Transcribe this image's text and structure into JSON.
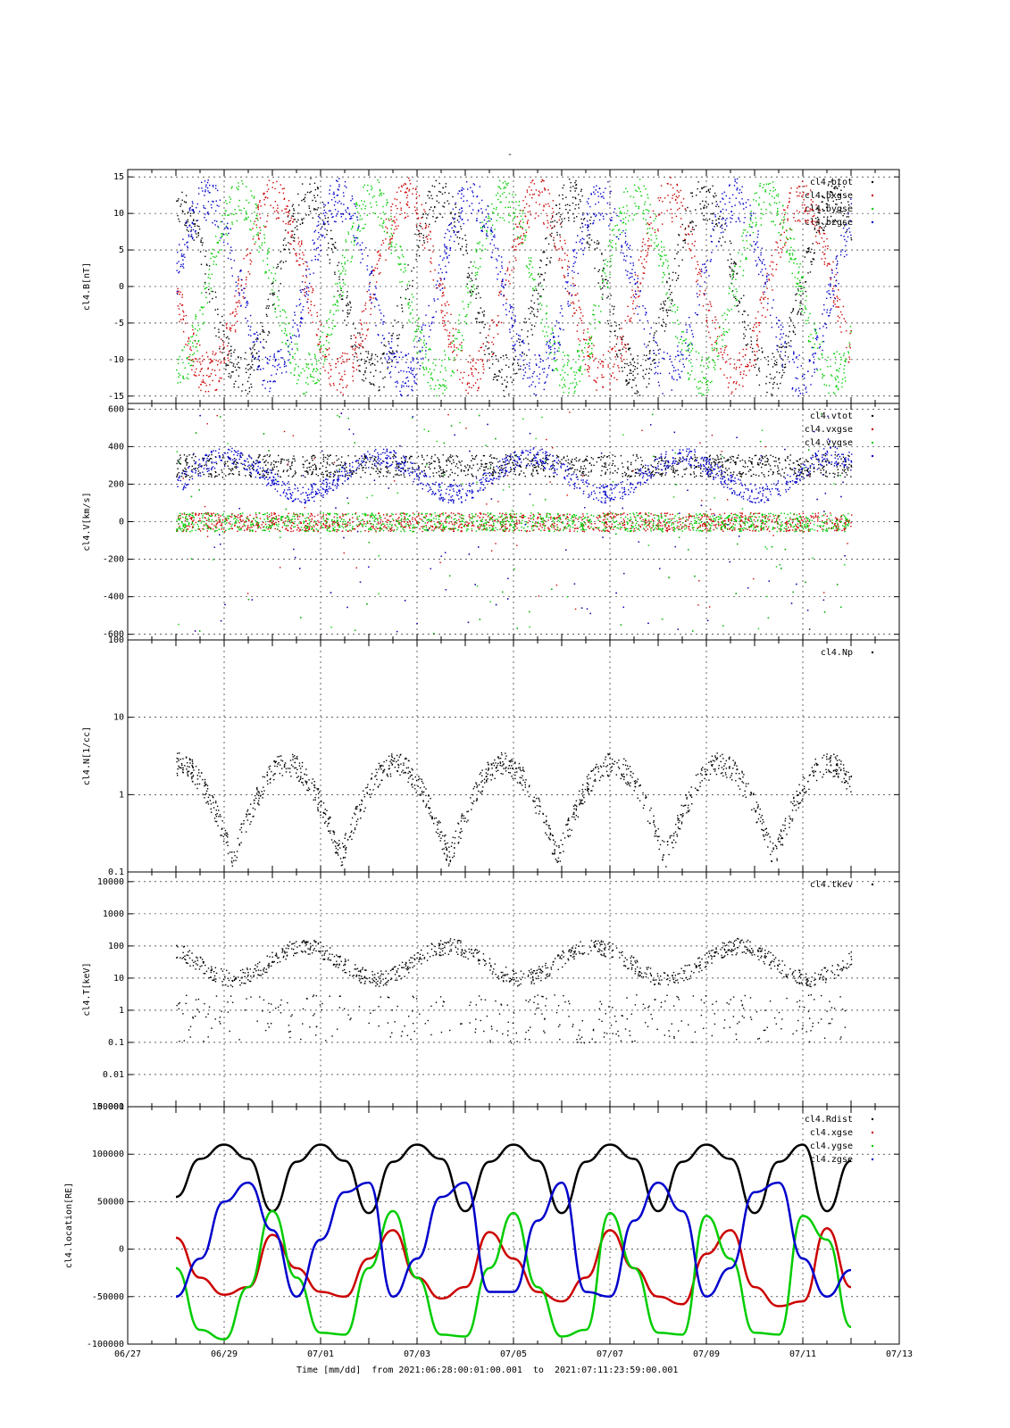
{
  "figure": {
    "title": "-",
    "time_caption": "Time [mm/dd]  from 2021:06:28:00:01:00.001  to  2021:07:11:23:59:00.001"
  },
  "chart_data": [
    {
      "type": "scatter",
      "ylabel": "cl4.B[nT]",
      "ylim": [
        -16,
        16
      ],
      "yscale": "linear",
      "yticks": [
        -15,
        -10,
        -5,
        0,
        5,
        10,
        15
      ],
      "ytick_labels": [
        "-15",
        "-10",
        "-5",
        "0",
        "5",
        "10",
        "15"
      ],
      "xlim": [
        "06/27",
        "07/13"
      ],
      "grid": true,
      "legend_position": "top-right",
      "series": [
        {
          "name": "cl4.btot",
          "color": "#000000"
        },
        {
          "name": "cl4.bxgse",
          "color": "#cc0000"
        },
        {
          "name": "cl4.bygse",
          "color": "#00cc00"
        },
        {
          "name": "cl4.bzgse",
          "color": "#0000cc"
        }
      ]
    },
    {
      "type": "scatter",
      "ylabel": "cl4.V[km/s]",
      "ylim": [
        -630,
        630
      ],
      "yscale": "linear",
      "yticks": [
        -600,
        -400,
        -200,
        0,
        200,
        400,
        600
      ],
      "ytick_labels": [
        "-600",
        "-400",
        "-200",
        "0",
        "200",
        "400",
        "600"
      ],
      "xlim": [
        "06/27",
        "07/13"
      ],
      "grid": true,
      "legend_position": "top-right",
      "series": [
        {
          "name": "cl4.vtot",
          "color": "#000000"
        },
        {
          "name": "cl4.vxgse",
          "color": "#cc0000"
        },
        {
          "name": "cl4.vygse",
          "color": "#00cc00"
        },
        {
          "name": "",
          "color": "#0000cc"
        }
      ]
    },
    {
      "type": "scatter",
      "ylabel": "cl4.N[1/cc]",
      "ylim": [
        0.1,
        100
      ],
      "yscale": "log",
      "yticks": [
        0.1,
        1,
        10,
        100
      ],
      "ytick_labels": [
        "0.1",
        "1",
        "10",
        "100"
      ],
      "xlim": [
        "06/27",
        "07/13"
      ],
      "grid": true,
      "legend_position": "top-right",
      "series": [
        {
          "name": "cl4.Np",
          "color": "#000000"
        }
      ]
    },
    {
      "type": "scatter",
      "ylabel": "cl4.T[keV]",
      "ylim": [
        0.001,
        20000
      ],
      "yscale": "log",
      "yticks": [
        0.001,
        0.01,
        0.1,
        1,
        10,
        100,
        1000,
        10000
      ],
      "ytick_labels": [
        "0.001",
        "0.01",
        "0.1",
        "1",
        "10",
        "100",
        "1000",
        "10000"
      ],
      "xlim": [
        "06/27",
        "07/13"
      ],
      "grid": true,
      "legend_position": "top-right",
      "series": [
        {
          "name": "cl4.tkev",
          "color": "#000000"
        }
      ]
    },
    {
      "type": "line",
      "ylabel": "cl4.location[RE]",
      "ylim": [
        -100000,
        150000
      ],
      "yscale": "linear",
      "yticks": [
        -100000,
        -50000,
        0,
        50000,
        100000,
        150000
      ],
      "ytick_labels": [
        "-100000",
        "-50000",
        "0",
        "50000",
        "100000",
        "150000"
      ],
      "xlim": [
        "06/27",
        "07/13"
      ],
      "xticks": [
        "06/27",
        "06/29",
        "07/01",
        "07/03",
        "07/05",
        "07/07",
        "07/09",
        "07/11",
        "07/13"
      ],
      "xlabel": "Time [mm/dd]",
      "grid": true,
      "legend_position": "top-right",
      "series": [
        {
          "name": "cl4.Rdist",
          "color": "#000000",
          "x": [
            "06/28",
            "06/28 12h",
            "06/29",
            "06/29 12h",
            "06/30",
            "06/30 12h",
            "07/01",
            "07/01 12h",
            "07/02",
            "07/02 12h",
            "07/03",
            "07/03 12h",
            "07/04",
            "07/04 12h",
            "07/05",
            "07/05 12h",
            "07/06",
            "07/06 12h",
            "07/07",
            "07/07 12h",
            "07/08",
            "07/08 12h",
            "07/09",
            "07/09 12h",
            "07/10",
            "07/10 12h",
            "07/11",
            "07/11 12h",
            "07/12"
          ],
          "values": [
            55000,
            95000,
            110000,
            95000,
            40000,
            92000,
            110000,
            93000,
            38000,
            92000,
            110000,
            95000,
            40000,
            92000,
            110000,
            93000,
            38000,
            92000,
            110000,
            95000,
            40000,
            92000,
            110000,
            95000,
            38000,
            92000,
            110000,
            40000,
            93000
          ]
        },
        {
          "name": "cl4.xgse",
          "color": "#cc0000",
          "x": [
            "06/28",
            "06/28 12h",
            "06/29",
            "06/29 12h",
            "06/30",
            "06/30 12h",
            "07/01",
            "07/01 12h",
            "07/02",
            "07/02 12h",
            "07/03",
            "07/03 12h",
            "07/04",
            "07/04 12h",
            "07/05",
            "07/05 12h",
            "07/06",
            "07/06 12h",
            "07/07",
            "07/07 12h",
            "07/08",
            "07/08 12h",
            "07/09",
            "07/09 12h",
            "07/10",
            "07/10 12h",
            "07/11",
            "07/11 12h",
            "07/12"
          ],
          "values": [
            12000,
            -30000,
            -48000,
            -40000,
            15000,
            -20000,
            -45000,
            -50000,
            -10000,
            20000,
            -30000,
            -52000,
            -40000,
            18000,
            -10000,
            -45000,
            -55000,
            -30000,
            20000,
            -20000,
            -50000,
            -58000,
            -5000,
            20000,
            -40000,
            -60000,
            -55000,
            22000,
            -40000
          ]
        },
        {
          "name": "cl4.ygse",
          "color": "#00cc00",
          "x": [
            "06/28",
            "06/28 12h",
            "06/29",
            "06/29 12h",
            "06/30",
            "06/30 12h",
            "07/01",
            "07/01 12h",
            "07/02",
            "07/02 12h",
            "07/03",
            "07/03 12h",
            "07/04",
            "07/04 12h",
            "07/05",
            "07/05 12h",
            "07/06",
            "07/06 12h",
            "07/07",
            "07/07 12h",
            "07/08",
            "07/08 12h",
            "07/09",
            "07/09 12h",
            "07/10",
            "07/10 12h",
            "07/11",
            "07/11 12h",
            "07/12"
          ],
          "values": [
            -20000,
            -85000,
            -95000,
            -40000,
            40000,
            -30000,
            -88000,
            -90000,
            -20000,
            40000,
            -30000,
            -90000,
            -92000,
            -20000,
            38000,
            -40000,
            -92000,
            -85000,
            38000,
            -20000,
            -88000,
            -90000,
            35000,
            -10000,
            -88000,
            -90000,
            35000,
            10000,
            -82000
          ]
        },
        {
          "name": "cl4.zgse",
          "color": "#0000cc",
          "x": [
            "06/28",
            "06/28 12h",
            "06/29",
            "06/29 12h",
            "06/30",
            "06/30 12h",
            "07/01",
            "07/01 12h",
            "07/02",
            "07/02 12h",
            "07/03",
            "07/03 12h",
            "07/04",
            "07/04 12h",
            "07/05",
            "07/05 12h",
            "07/06",
            "07/06 12h",
            "07/07",
            "07/07 12h",
            "07/08",
            "07/08 12h",
            "07/09",
            "07/09 12h",
            "07/10",
            "07/10 12h",
            "07/11",
            "07/11 12h",
            "07/12"
          ],
          "values": [
            -50000,
            -10000,
            50000,
            70000,
            20000,
            -50000,
            10000,
            60000,
            70000,
            -50000,
            -10000,
            55000,
            70000,
            -45000,
            -45000,
            30000,
            70000,
            -45000,
            -50000,
            30000,
            70000,
            40000,
            -50000,
            -20000,
            60000,
            70000,
            -10000,
            -50000,
            -22000
          ]
        }
      ]
    }
  ]
}
